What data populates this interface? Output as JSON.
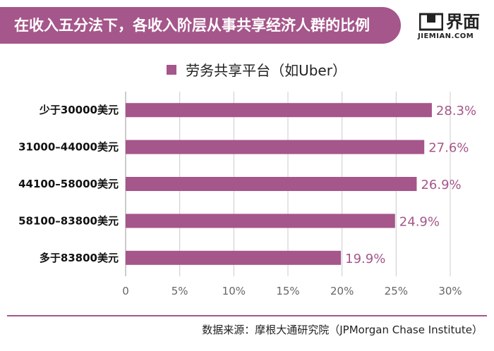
{
  "header": {
    "title": "在收入五分法下，各收入阶层从事共享经济人群的比例",
    "logo_cn": "界面",
    "logo_en": "JIEMIAN.COM",
    "logo_icon": "jiemian-logo-icon"
  },
  "colors": {
    "accent": "#a5568a",
    "grid": "#cccccc",
    "axis": "#999999"
  },
  "chart_data": {
    "type": "bar",
    "orientation": "horizontal",
    "categories": [
      "少于30000美元",
      "31000–44000美元",
      "44100–58000美元",
      "58100–83800美元",
      "多于83800美元"
    ],
    "series": [
      {
        "name": "劳务共享平台（如Uber）",
        "values": [
          28.3,
          27.6,
          26.9,
          24.9,
          19.9
        ]
      }
    ],
    "value_labels": [
      "28.3%",
      "27.6%",
      "26.9%",
      "24.9%",
      "19.9%"
    ],
    "x_ticks": [
      0,
      5,
      10,
      15,
      20,
      25,
      30
    ],
    "x_tick_labels": [
      "0",
      "5%",
      "10%",
      "15%",
      "20%",
      "25%",
      "30%"
    ],
    "xlim": [
      0,
      30
    ],
    "title": "",
    "xlabel": "",
    "ylabel": "",
    "grid": "vertical",
    "legend_position": "top"
  },
  "footer": {
    "source": "数据来源：摩根大通研究院（JPMorgan Chase Institute）"
  }
}
